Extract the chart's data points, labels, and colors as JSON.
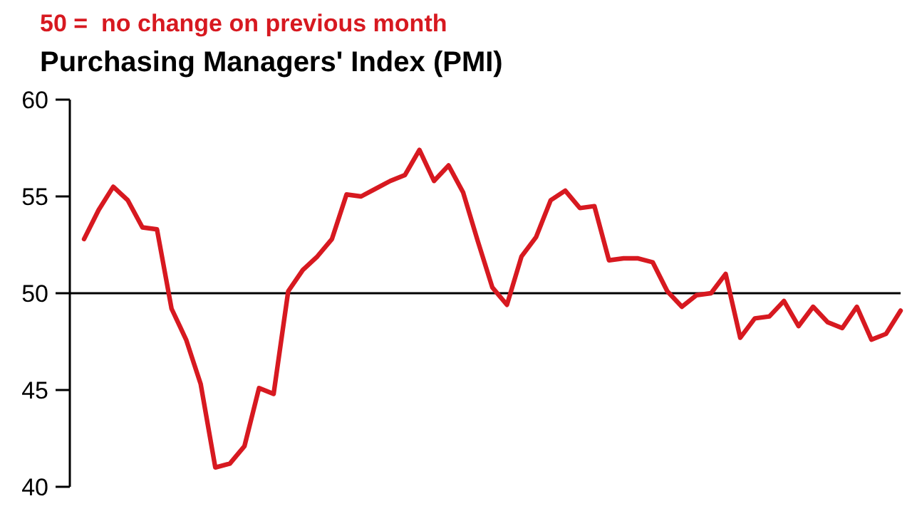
{
  "chart_data": {
    "type": "line",
    "title": "Purchasing Managers' Index (PMI)",
    "subtitle": "50 =  no change on previous month",
    "categories": [
      null,
      null,
      null,
      null,
      null,
      null,
      null,
      null,
      null,
      null,
      null,
      null,
      null,
      null,
      null,
      null,
      null,
      null,
      null,
      null,
      null,
      null,
      null,
      null,
      null,
      null,
      null,
      null,
      null,
      null,
      null,
      null,
      null,
      null,
      null,
      null,
      null,
      null,
      null,
      null,
      null,
      null,
      null,
      null,
      null,
      null,
      null,
      null,
      null,
      null,
      null,
      null,
      null,
      null,
      null,
      null,
      null
    ],
    "series": [
      {
        "color": "#d71920",
        "values": [
          52.8,
          54.3,
          55.5,
          54.8,
          53.4,
          53.3,
          49.2,
          47.6,
          45.3,
          41.0,
          41.2,
          42.1,
          45.1,
          44.8,
          50.1,
          51.2,
          51.9,
          52.8,
          55.1,
          55.0,
          55.4,
          55.8,
          56.1,
          57.4,
          55.8,
          56.6,
          55.2,
          52.7,
          50.3,
          49.4,
          51.9,
          52.9,
          54.8,
          55.3,
          54.4,
          54.5,
          51.7,
          51.8,
          51.8,
          51.6,
          50.1,
          49.3,
          49.9,
          50.0,
          51.0,
          47.7,
          48.7,
          48.8,
          49.6,
          48.3,
          49.3,
          48.5,
          48.2,
          49.3,
          47.6,
          47.9,
          49.1
        ]
      }
    ],
    "ylim": [
      40,
      60
    ],
    "yticks": [
      40,
      45,
      50,
      55,
      60
    ],
    "tick_labels": "y",
    "grid": false,
    "ref_lines": [
      {
        "axis": "y",
        "value": 50,
        "color": "#000000"
      }
    ]
  }
}
